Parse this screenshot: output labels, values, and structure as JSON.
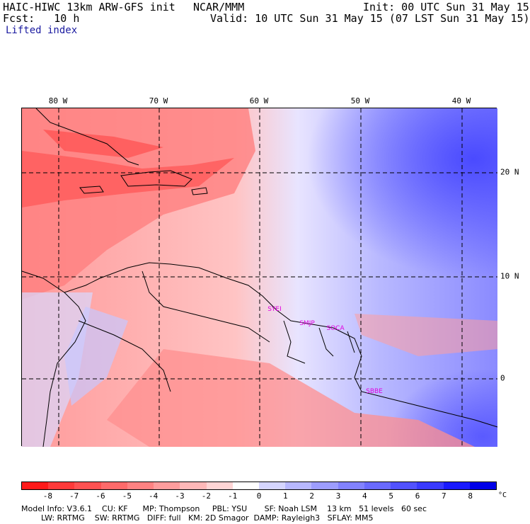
{
  "header": {
    "model": "HAIC-HIWC 13km ARW-GFS init",
    "org": "NCAR/MMM",
    "init": "Init: 00 UTC Sun 31 May 15",
    "fcst": "Fcst:   10 h",
    "valid": "Valid: 10 UTC Sun 31 May 15 (07 LST Sun 31 May 15)",
    "field": "Lifted index"
  },
  "axes": {
    "lon_labels": [
      "80 W",
      "70 W",
      "60 W",
      "50 W",
      "40 W"
    ],
    "lat_labels": [
      "20 N",
      "10 N",
      "0"
    ]
  },
  "stations": [
    "SYEI",
    "SMJP",
    "SOCA",
    "SBBE"
  ],
  "colorbar": {
    "ticks": [
      "-8",
      "-7",
      "-6",
      "-5",
      "-4",
      "-3",
      "-2",
      "-1",
      "0",
      "1",
      "2",
      "3",
      "4",
      "5",
      "6",
      "7",
      "8"
    ],
    "unit": "°C",
    "colors": [
      "#ff1a1a",
      "#ff3a3a",
      "#ff5252",
      "#ff6a6a",
      "#ff8282",
      "#ff9d9d",
      "#ffb8b8",
      "#ffd5d5",
      "#ffffff",
      "#d5d5ff",
      "#b8b8ff",
      "#9d9dff",
      "#8282ff",
      "#6a6aff",
      "#5252ff",
      "#3a3aff",
      "#1a1aff",
      "#0000e8"
    ]
  },
  "footer": {
    "line1": "Model Info: V3.6.1    CU: KF      MP: Thompson     PBL: YSU       SF: Noah LSM    13 km   51 levels   60 sec",
    "line2": "        LW: RRTMG    SW: RRTMG   DIFF: full   KM: 2D Smagor  DAMP: Rayleigh3   SFLAY: MM5"
  }
}
